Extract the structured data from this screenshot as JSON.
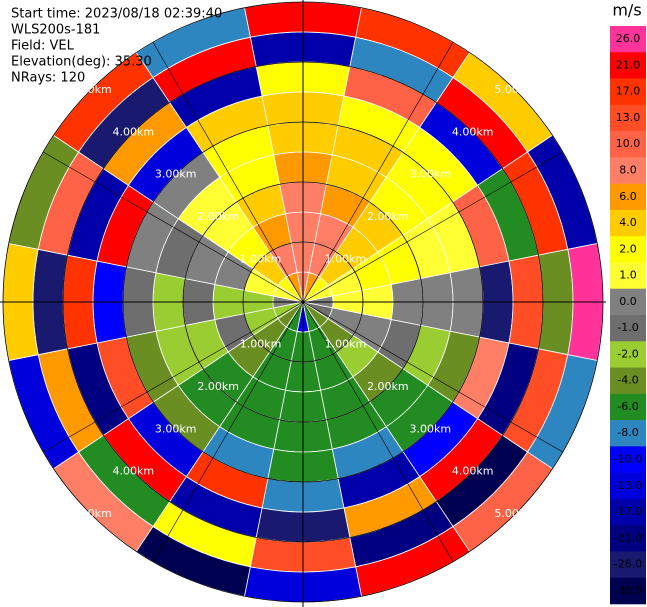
{
  "chart_data": {
    "type": "ppi",
    "header": [
      "Start time: 2023/08/18 02:39:40",
      "WLS200s-181",
      "Field: VEL",
      "Elevation(deg): 35.30",
      "NRays: 120"
    ],
    "rlim": [
      0,
      5
    ],
    "range_rings": [
      {
        "value": 1,
        "label": "1.00km"
      },
      {
        "value": 2,
        "label": "2.00km"
      },
      {
        "value": 3,
        "label": "3.00km"
      },
      {
        "value": 4,
        "label": "4.00km"
      },
      {
        "value": 5,
        "label": "5.00km"
      }
    ],
    "field": {
      "azimuths": [
        0,
        22.5,
        45,
        67.5,
        90,
        112.5,
        135,
        157.5,
        180,
        202.5,
        225,
        247.5,
        270,
        292.5,
        315,
        337.5
      ],
      "range_bins": [
        0,
        0.5,
        1,
        1.5,
        2,
        2.5,
        3,
        3.5,
        4,
        4.5,
        5
      ],
      "values": [
        [
          9,
          9,
          9,
          8,
          7,
          5,
          5,
          3,
          -17,
          22
        ],
        [
          7,
          9,
          8,
          6,
          5,
          5,
          3,
          12,
          -8,
          18
        ],
        [
          3,
          5,
          5,
          5,
          3,
          3,
          2,
          -12,
          25,
          5
        ],
        [
          1.5,
          1.5,
          3,
          3,
          1.5,
          1.5,
          12,
          -5,
          20,
          -15
        ],
        [
          0.5,
          1.5,
          1.5,
          0.5,
          0.5,
          0.5,
          -22,
          14,
          -3,
          27
        ],
        [
          -0.5,
          0.5,
          0.5,
          -0.5,
          -1.5,
          -3,
          9,
          -19,
          16,
          -7
        ],
        [
          -3,
          -3,
          -1.5,
          -3,
          -5,
          -5,
          -9,
          22,
          -27,
          11
        ],
        [
          -5,
          -5,
          -5,
          -5,
          -5,
          -7,
          -14,
          6,
          -18,
          24
        ],
        [
          -9,
          -5,
          -5,
          -5,
          -5,
          -5,
          -7,
          -24,
          13,
          -11
        ],
        [
          -5,
          -5,
          -5,
          -5,
          -5,
          -7,
          18,
          -15,
          3,
          -28
        ],
        [
          -3,
          -3,
          -3,
          -5,
          -5,
          -3,
          -12,
          25,
          -6,
          9
        ],
        [
          -1.5,
          -1.5,
          -0.5,
          -1.5,
          -1.5,
          -3,
          15,
          -20,
          7,
          -13
        ],
        [
          0.5,
          -1.5,
          -1.5,
          -0.5,
          -1.5,
          -0.5,
          -9,
          19,
          -23,
          4
        ],
        [
          1.5,
          1.5,
          0.5,
          0.5,
          -0.5,
          0.5,
          23,
          -16,
          10,
          -4
        ],
        [
          3,
          5,
          3,
          1.5,
          1.5,
          0.5,
          -11,
          7,
          -25,
          17
        ],
        [
          7,
          9,
          7,
          5,
          3,
          3,
          5,
          -14,
          21,
          -8
        ]
      ]
    },
    "colorbar": {
      "title": "m/s",
      "ticks": [
        {
          "value": 26,
          "label": "26.0"
        },
        {
          "value": 21,
          "label": "21.0"
        },
        {
          "value": 17,
          "label": "17.0"
        },
        {
          "value": 13,
          "label": "13.0"
        },
        {
          "value": 10,
          "label": "10.0"
        },
        {
          "value": 8,
          "label": "8.0"
        },
        {
          "value": 6,
          "label": "6.0"
        },
        {
          "value": 4,
          "label": "4.0"
        },
        {
          "value": 2,
          "label": "2.0"
        },
        {
          "value": 1,
          "label": "1.0"
        },
        {
          "value": 0,
          "label": "0.0"
        },
        {
          "value": -1,
          "label": "-1.0"
        },
        {
          "value": -2,
          "label": "-2.0"
        },
        {
          "value": -4,
          "label": "-4.0"
        },
        {
          "value": -6,
          "label": "-6.0"
        },
        {
          "value": -8,
          "label": "-8.0"
        },
        {
          "value": -10,
          "label": "-10.0"
        },
        {
          "value": -13,
          "label": "-13.0"
        },
        {
          "value": -17,
          "label": "-17.0"
        },
        {
          "value": -21,
          "label": "-21.0"
        },
        {
          "value": -26,
          "label": "-26.0"
        },
        {
          "value": -30,
          "label": "-30.0"
        }
      ],
      "colors": [
        "#ff3399",
        "#ff0000",
        "#ff3300",
        "#ff4d26",
        "#ff6347",
        "#ff7f66",
        "#ff9900",
        "#ffcc00",
        "#ffff00",
        "#ffff33",
        "#808080",
        "#6e6e6e",
        "#9acd32",
        "#6b8e23",
        "#228b22",
        "#2e86c1",
        "#0000ff",
        "#0000dd",
        "#0000aa",
        "#000080",
        "#191970",
        "#000050"
      ]
    }
  }
}
